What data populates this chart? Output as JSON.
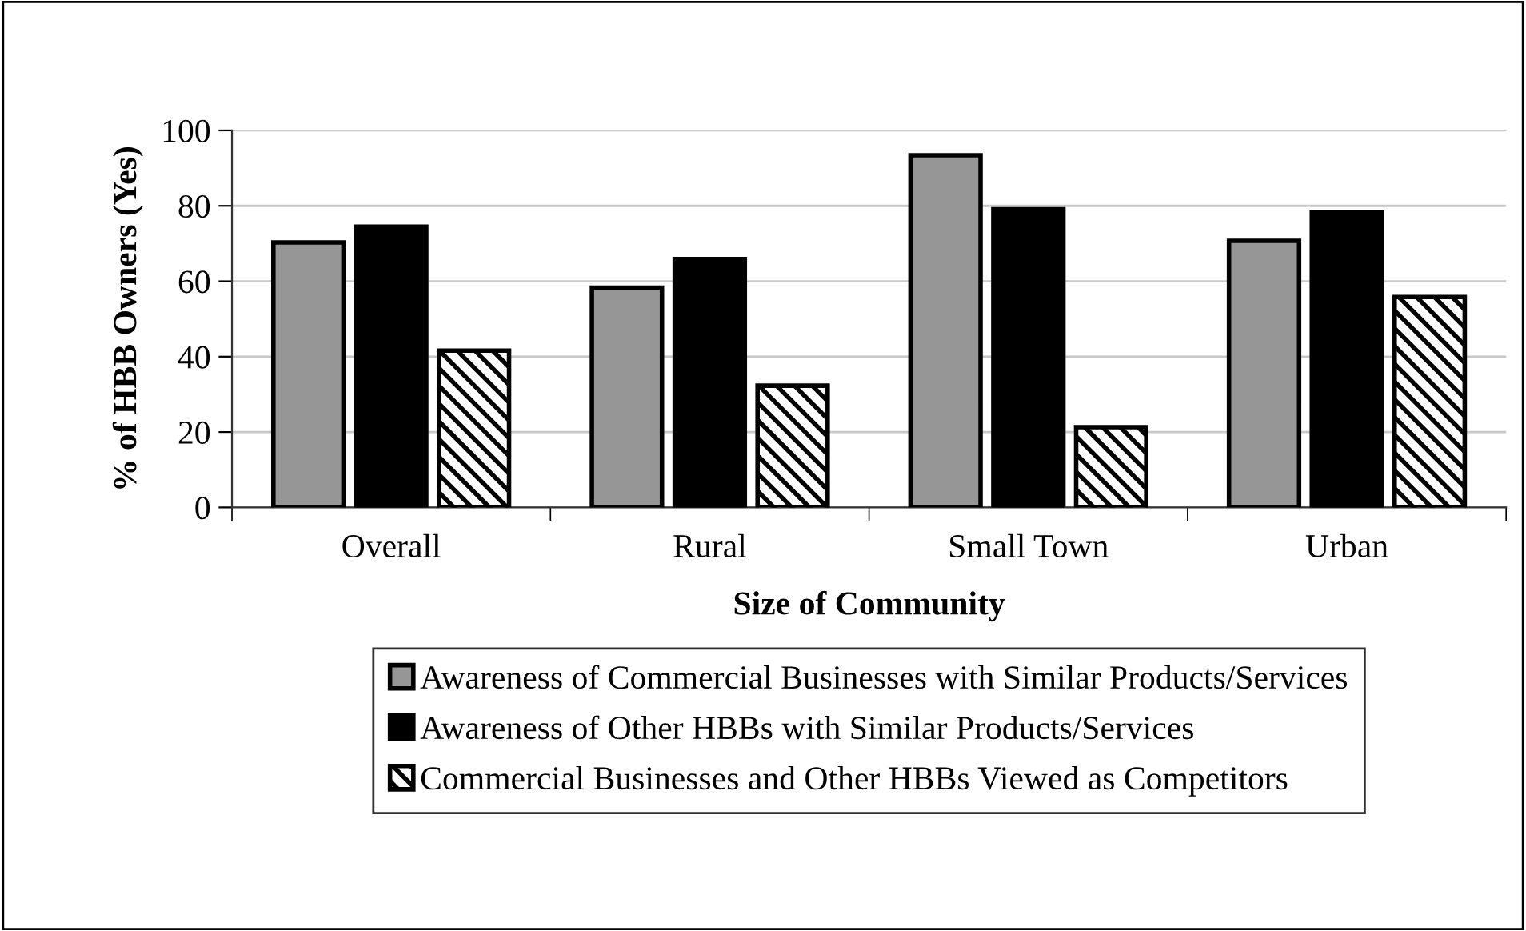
{
  "chart_data": {
    "type": "bar",
    "xlabel": "Size of Community",
    "ylabel": "% of HBB Owners (Yes)",
    "categories": [
      "Overall",
      "Rural",
      "Small Town",
      "Urban"
    ],
    "series": [
      {
        "name": "Awareness of Commercial Businesses with Similar Products/Services",
        "color": "#969696",
        "values": [
          70.3,
          58.3,
          93.4,
          70.7
        ]
      },
      {
        "name": "Awareness of Other HBBs with Similar Products/Services",
        "color": "#000000",
        "values": [
          74.5,
          65.9,
          79.1,
          78.2
        ]
      },
      {
        "name": "Commercial Businesses and Other HBBs Viewed as Competitors",
        "color": "#000000",
        "values": [
          41.6,
          32.3,
          21.3,
          55.8
        ]
      }
    ],
    "ylim": [
      0,
      100
    ],
    "yticks": [
      0,
      20,
      40,
      60,
      80,
      100
    ],
    "grid": "y",
    "legend": "bottom"
  }
}
